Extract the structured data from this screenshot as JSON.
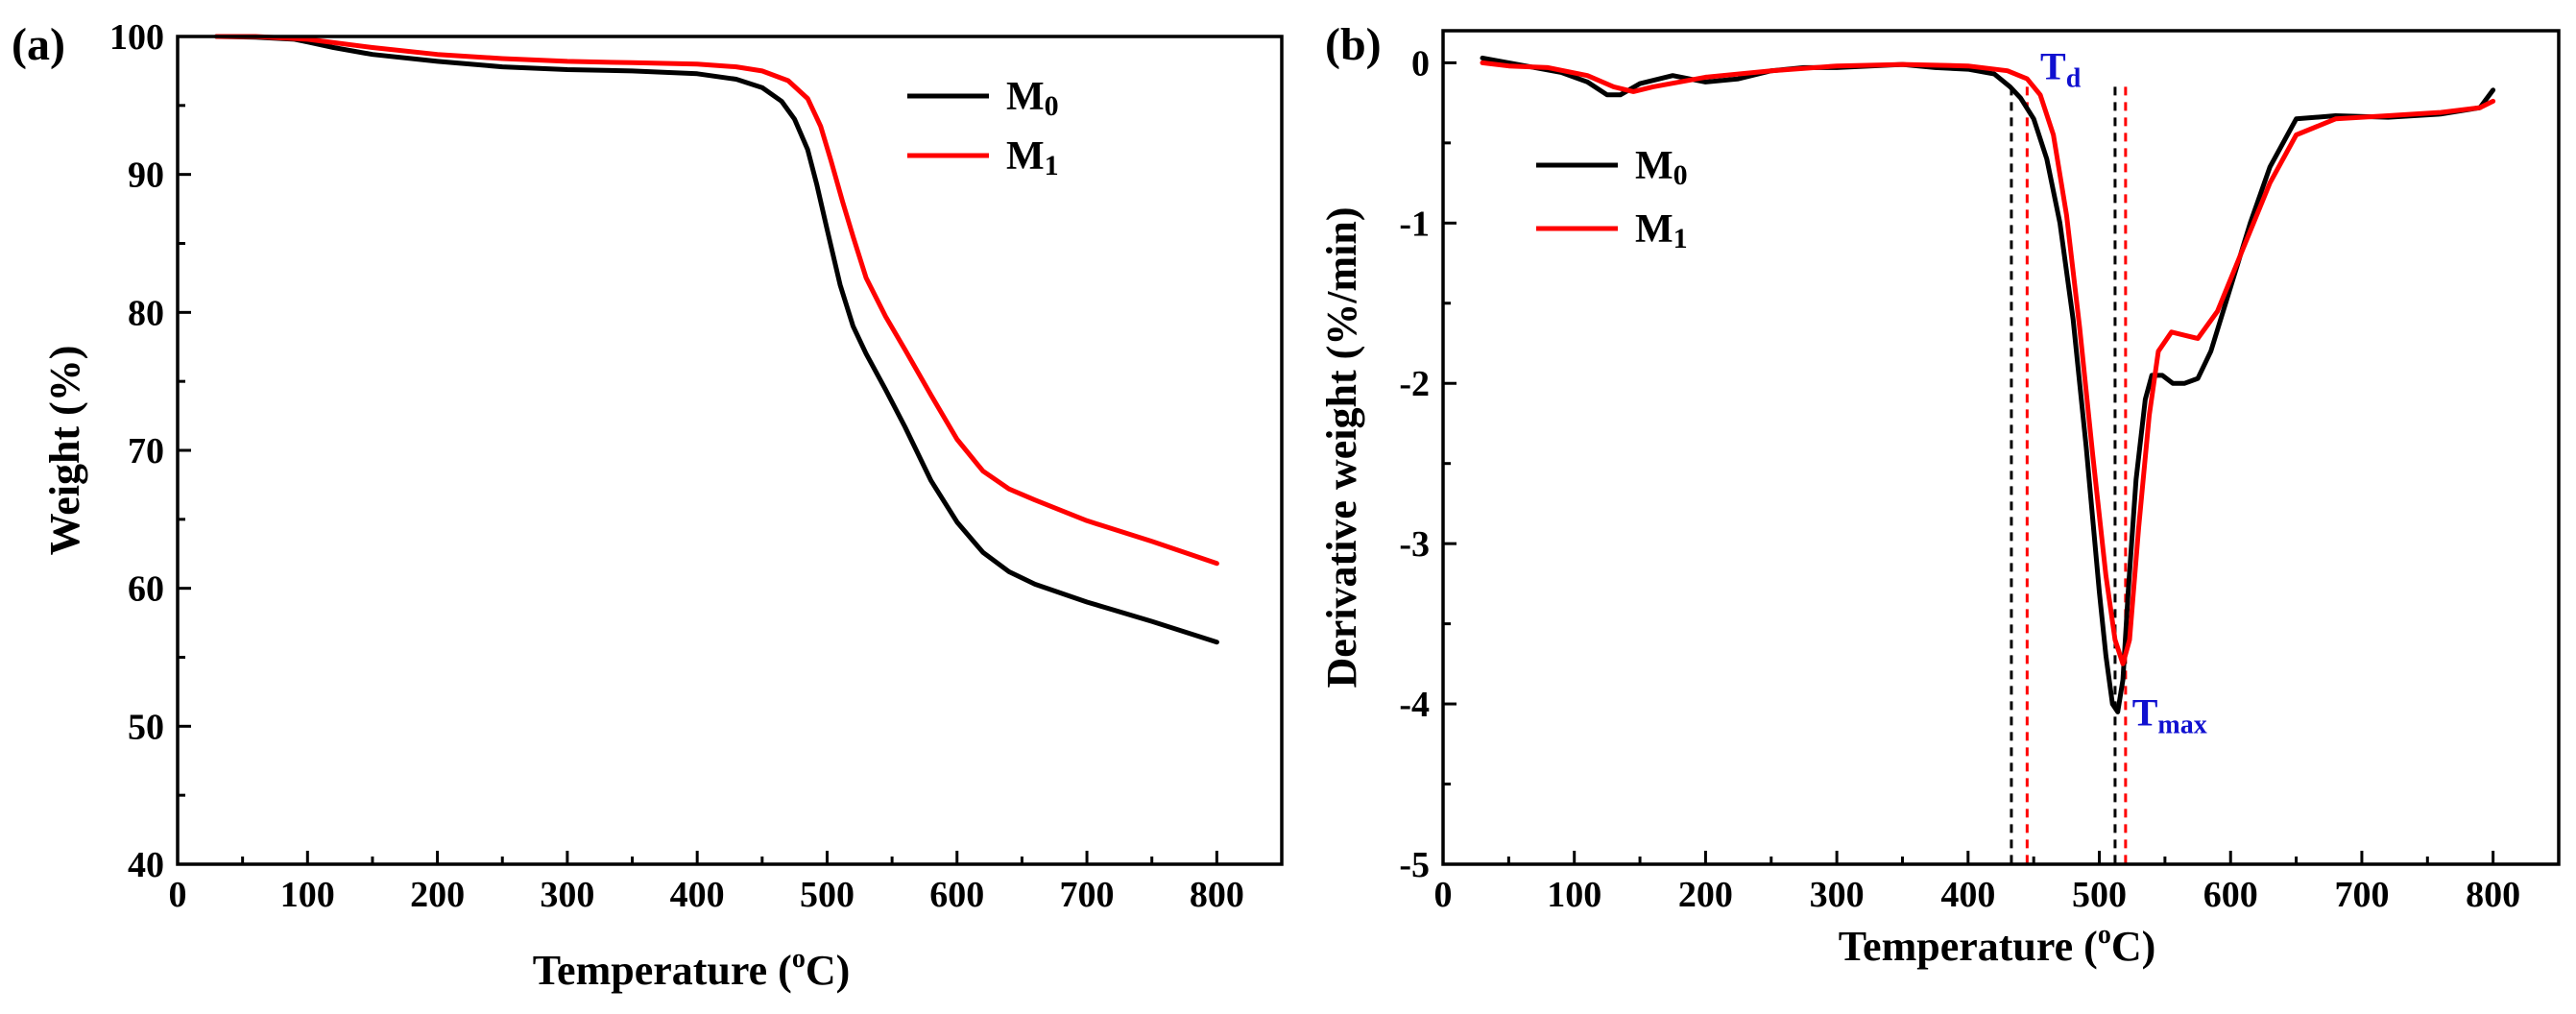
{
  "chart_data": [
    {
      "type": "line",
      "panel_label": "(a)",
      "xlabel": "Temperature (",
      "xlabel_sup": "o",
      "xlabel_end": "C)",
      "ylabel": "Weight (%)",
      "xlim": [
        0,
        850
      ],
      "ylim": [
        40,
        100
      ],
      "xticks": [
        0,
        100,
        200,
        300,
        400,
        500,
        600,
        700,
        800
      ],
      "yticks": [
        40,
        50,
        60,
        70,
        80,
        90,
        100
      ],
      "legend_position": "top-right",
      "series": [
        {
          "name": "M",
          "sub": "0",
          "color": "#000000",
          "x": [
            30,
            60,
            90,
            100,
            120,
            150,
            200,
            250,
            300,
            350,
            400,
            430,
            450,
            465,
            475,
            485,
            492,
            500,
            510,
            520,
            530,
            545,
            560,
            580,
            600,
            620,
            640,
            660,
            700,
            750,
            800
          ],
          "y": [
            100,
            99.95,
            99.8,
            99.6,
            99.2,
            98.7,
            98.2,
            97.8,
            97.6,
            97.5,
            97.3,
            96.9,
            96.3,
            95.3,
            94.0,
            91.8,
            89.3,
            86.0,
            82.0,
            79.0,
            77.0,
            74.4,
            71.7,
            67.8,
            64.8,
            62.6,
            61.2,
            60.3,
            59.0,
            57.6,
            56.1
          ]
        },
        {
          "name": "M",
          "sub": "1",
          "color": "#ff0000",
          "x": [
            30,
            60,
            100,
            150,
            200,
            250,
            300,
            350,
            400,
            430,
            450,
            470,
            485,
            495,
            503,
            512,
            520,
            530,
            545,
            560,
            580,
            600,
            620,
            640,
            660,
            700,
            750,
            800
          ],
          "y": [
            100,
            100,
            99.8,
            99.2,
            98.7,
            98.4,
            98.2,
            98.1,
            98.0,
            97.8,
            97.5,
            96.8,
            95.5,
            93.5,
            91.0,
            88.0,
            85.5,
            82.5,
            79.7,
            77.3,
            74.0,
            70.8,
            68.5,
            67.2,
            66.4,
            64.9,
            63.4,
            61.8
          ]
        }
      ]
    },
    {
      "type": "line",
      "panel_label": "(b)",
      "xlabel": "Temperature (",
      "xlabel_sup": "o",
      "xlabel_end": "C)",
      "ylabel": "Derivative weight (%/min)",
      "xlim": [
        0,
        850
      ],
      "ylim": [
        -5,
        0.2
      ],
      "xticks": [
        0,
        100,
        200,
        300,
        400,
        500,
        600,
        700,
        800
      ],
      "yticks": [
        -5,
        -4,
        -3,
        -2,
        -1,
        0
      ],
      "ytick_labels": [
        "-5",
        "-4",
        "-3",
        "-2",
        "-1",
        "0"
      ],
      "legend_position": "top-left",
      "annotations": [
        {
          "name": "Td",
          "label": "T",
          "sub": "d",
          "x": 455,
          "y": -0.02,
          "color": "#1010d0"
        },
        {
          "name": "Tmax",
          "label": "T",
          "sub": "max",
          "x": 525,
          "y": -4.05,
          "color": "#1010d0"
        }
      ],
      "reference_lines": [
        {
          "x": 433,
          "color": "#000000"
        },
        {
          "x": 445,
          "color": "#ff0000"
        },
        {
          "x": 512,
          "color": "#000000"
        },
        {
          "x": 520,
          "color": "#ff0000"
        }
      ],
      "series": [
        {
          "name": "M",
          "sub": "0",
          "color": "#000000",
          "x": [
            30,
            50,
            70,
            90,
            110,
            125,
            135,
            150,
            175,
            200,
            225,
            250,
            275,
            300,
            325,
            350,
            375,
            400,
            420,
            432,
            440,
            450,
            460,
            470,
            480,
            490,
            500,
            505,
            510,
            514,
            518,
            522,
            528,
            535,
            540,
            548,
            556,
            565,
            575,
            585,
            600,
            615,
            630,
            650,
            680,
            720,
            760,
            790,
            800
          ],
          "y": [
            0.03,
            0.0,
            -0.03,
            -0.06,
            -0.12,
            -0.2,
            -0.2,
            -0.13,
            -0.08,
            -0.12,
            -0.1,
            -0.05,
            -0.03,
            -0.03,
            -0.02,
            -0.01,
            -0.03,
            -0.04,
            -0.07,
            -0.15,
            -0.22,
            -0.35,
            -0.6,
            -1.0,
            -1.6,
            -2.4,
            -3.3,
            -3.7,
            -4.0,
            -4.05,
            -3.85,
            -3.3,
            -2.6,
            -2.1,
            -1.95,
            -1.95,
            -2.0,
            -2.0,
            -1.97,
            -1.8,
            -1.4,
            -1.0,
            -0.65,
            -0.35,
            -0.33,
            -0.34,
            -0.32,
            -0.28,
            -0.17
          ]
        },
        {
          "name": "M",
          "sub": "1",
          "color": "#ff0000",
          "x": [
            30,
            50,
            80,
            110,
            130,
            145,
            160,
            200,
            250,
            300,
            350,
            400,
            430,
            445,
            455,
            465,
            475,
            485,
            495,
            505,
            512,
            518,
            523,
            530,
            538,
            545,
            555,
            565,
            575,
            590,
            610,
            630,
            650,
            680,
            720,
            760,
            790,
            800
          ],
          "y": [
            0.0,
            -0.02,
            -0.03,
            -0.08,
            -0.15,
            -0.18,
            -0.15,
            -0.09,
            -0.05,
            -0.02,
            -0.01,
            -0.02,
            -0.05,
            -0.1,
            -0.2,
            -0.45,
            -0.95,
            -1.65,
            -2.45,
            -3.2,
            -3.6,
            -3.75,
            -3.6,
            -2.9,
            -2.2,
            -1.8,
            -1.68,
            -1.7,
            -1.72,
            -1.55,
            -1.15,
            -0.75,
            -0.45,
            -0.35,
            -0.33,
            -0.31,
            -0.28,
            -0.24
          ]
        }
      ]
    }
  ]
}
